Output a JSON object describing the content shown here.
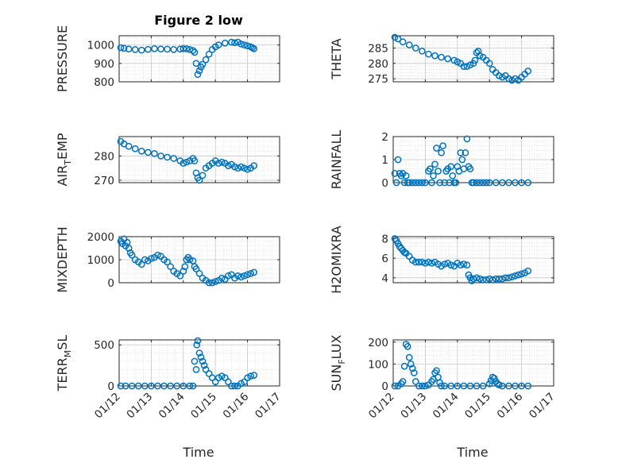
{
  "figure": {
    "title": "Figure 2 low",
    "xlabel": "Time"
  },
  "chart_data": [
    {
      "type": "scatter",
      "title": "Figure 2 low",
      "ylabel": "PRESSURE",
      "ylabel_sub": null,
      "ylim": [
        800,
        1050
      ],
      "yticks": [
        800,
        900,
        1000
      ],
      "xlim": [
        0,
        5
      ],
      "xticks": [
        0,
        1,
        2,
        3,
        4,
        5
      ],
      "xticklabels": [
        "01/12",
        "01/13",
        "01/14",
        "01/15",
        "01/16",
        "01/17"
      ],
      "show_xticklabels": false,
      "grid": true,
      "minor_grid": true,
      "series": [
        {
          "x": [
            0.05,
            0.15,
            0.3,
            0.5,
            0.7,
            0.9,
            1.1,
            1.3,
            1.5,
            1.7,
            1.9,
            2.0,
            2.1,
            2.2,
            2.3,
            2.35,
            2.4,
            2.45,
            2.5,
            2.55,
            2.6,
            2.7,
            2.8,
            2.9,
            3.0,
            3.1,
            3.3,
            3.5,
            3.6,
            3.7,
            3.8,
            3.9,
            4.0,
            4.1,
            4.15,
            4.2
          ],
          "y": [
            985,
            982,
            978,
            975,
            972,
            976,
            980,
            978,
            977,
            975,
            978,
            980,
            979,
            975,
            970,
            960,
            900,
            840,
            860,
            880,
            895,
            920,
            950,
            975,
            990,
            1000,
            1010,
            1015,
            1012,
            1015,
            1005,
            1000,
            995,
            990,
            985,
            980
          ]
        }
      ]
    },
    {
      "type": "scatter",
      "title": "",
      "ylabel": "THETA",
      "ylabel_sub": null,
      "ylim": [
        274,
        289
      ],
      "yticks": [
        275,
        280,
        285
      ],
      "xlim": [
        0,
        5
      ],
      "xticks": [
        0,
        1,
        2,
        3,
        4,
        5
      ],
      "xticklabels": [
        "01/12",
        "01/13",
        "01/14",
        "01/15",
        "01/16",
        "01/17"
      ],
      "show_xticklabels": false,
      "grid": true,
      "minor_grid": true,
      "series": [
        {
          "x": [
            0.05,
            0.15,
            0.3,
            0.5,
            0.7,
            0.9,
            1.1,
            1.3,
            1.5,
            1.7,
            1.9,
            2.0,
            2.1,
            2.2,
            2.3,
            2.4,
            2.5,
            2.55,
            2.6,
            2.65,
            2.7,
            2.8,
            2.9,
            3.0,
            3.1,
            3.2,
            3.3,
            3.4,
            3.5,
            3.6,
            3.7,
            3.8,
            3.9,
            4.0,
            4.1,
            4.2
          ],
          "y": [
            288.5,
            288,
            287,
            286,
            285,
            284,
            283,
            282.5,
            282,
            281.5,
            281,
            280.5,
            280,
            279,
            279,
            279.5,
            280,
            281,
            283.5,
            284,
            282.5,
            282,
            281,
            280,
            278,
            277,
            276,
            275.5,
            276,
            275,
            274.5,
            275,
            274.5,
            275.5,
            276.5,
            277.5
          ]
        }
      ]
    },
    {
      "type": "scatter",
      "title": "",
      "ylabel": "AIR",
      "ylabel_sub": "T",
      "ylabel_post": "EMP",
      "ylim": [
        269,
        288
      ],
      "yticks": [
        270,
        280
      ],
      "xlim": [
        0,
        5
      ],
      "xticks": [
        0,
        1,
        2,
        3,
        4,
        5
      ],
      "xticklabels": [
        "01/12",
        "01/13",
        "01/14",
        "01/15",
        "01/16",
        "01/17"
      ],
      "show_xticklabels": false,
      "grid": true,
      "minor_grid": true,
      "series": [
        {
          "x": [
            0.05,
            0.15,
            0.3,
            0.5,
            0.7,
            0.9,
            1.1,
            1.3,
            1.5,
            1.7,
            1.9,
            2.0,
            2.1,
            2.2,
            2.3,
            2.35,
            2.4,
            2.45,
            2.5,
            2.6,
            2.7,
            2.8,
            2.9,
            3.0,
            3.1,
            3.2,
            3.3,
            3.4,
            3.5,
            3.6,
            3.7,
            3.8,
            3.9,
            4.0,
            4.1,
            4.2
          ],
          "y": [
            286,
            285,
            284,
            283,
            282,
            281.5,
            281,
            280,
            279.5,
            279,
            278,
            277,
            277.5,
            278,
            279,
            278,
            273,
            271,
            270,
            272,
            275,
            276,
            277,
            278,
            277,
            277.5,
            277,
            276,
            276.5,
            275.5,
            275,
            275.5,
            275,
            274.5,
            275,
            276
          ]
        }
      ]
    },
    {
      "type": "scatter",
      "title": "",
      "ylabel": "RAINFALL",
      "ylabel_sub": null,
      "ylim": [
        0,
        2
      ],
      "yticks": [
        0,
        1,
        2
      ],
      "xlim": [
        0,
        5
      ],
      "xticks": [
        0,
        1,
        2,
        3,
        4,
        5
      ],
      "xticklabels": [
        "01/12",
        "01/13",
        "01/14",
        "01/15",
        "01/16",
        "01/17"
      ],
      "show_xticklabels": false,
      "grid": true,
      "minor_grid": true,
      "series": [
        {
          "x": [
            0.05,
            0.1,
            0.15,
            0.2,
            0.25,
            0.3,
            0.35,
            0.4,
            0.45,
            0.5,
            0.6,
            0.7,
            0.8,
            0.9,
            1.0,
            1.1,
            1.15,
            1.2,
            1.25,
            1.3,
            1.35,
            1.4,
            1.45,
            1.5,
            1.55,
            1.6,
            1.65,
            1.7,
            1.75,
            1.8,
            1.85,
            1.9,
            1.95,
            2.0,
            2.05,
            2.1,
            2.15,
            2.2,
            2.25,
            2.3,
            2.35,
            2.4,
            2.45,
            2.5,
            2.6,
            2.7,
            2.8,
            2.9,
            3.0,
            3.2,
            3.4,
            3.6,
            3.8,
            4.0,
            4.2
          ],
          "y": [
            0.4,
            0.0,
            1.0,
            0.4,
            0.3,
            0.4,
            0.0,
            0.3,
            0.0,
            0.0,
            0.0,
            0.0,
            0.0,
            0.0,
            0.0,
            0.5,
            0.6,
            0.0,
            0.3,
            0.8,
            1.5,
            0.5,
            0.0,
            1.3,
            1.6,
            0.0,
            0.5,
            0.6,
            0.0,
            0.7,
            0.3,
            0.0,
            0.0,
            0.7,
            0.5,
            1.3,
            1.0,
            0.6,
            1.3,
            1.9,
            0.7,
            0.6,
            0.0,
            0.0,
            0.0,
            0.0,
            0.0,
            0.0,
            0.0,
            0.0,
            0.0,
            0.0,
            0.0,
            0.0,
            0.0
          ]
        }
      ]
    },
    {
      "type": "scatter",
      "title": "",
      "ylabel": "MIXDEPTH",
      "ylabel_sub": null,
      "ylim": [
        0,
        2000
      ],
      "yticks": [
        0,
        1000,
        2000
      ],
      "xlim": [
        0,
        5
      ],
      "xticks": [
        0,
        1,
        2,
        3,
        4,
        5
      ],
      "xticklabels": [
        "01/12",
        "01/13",
        "01/14",
        "01/15",
        "01/16",
        "01/17"
      ],
      "show_xticklabels": false,
      "grid": true,
      "minor_grid": true,
      "series": [
        {
          "x": [
            0.05,
            0.1,
            0.15,
            0.2,
            0.25,
            0.3,
            0.35,
            0.4,
            0.5,
            0.6,
            0.7,
            0.8,
            0.9,
            1.0,
            1.1,
            1.2,
            1.3,
            1.4,
            1.5,
            1.6,
            1.7,
            1.8,
            1.9,
            2.0,
            2.05,
            2.1,
            2.15,
            2.2,
            2.3,
            2.35,
            2.4,
            2.5,
            2.6,
            2.7,
            2.8,
            2.9,
            3.0,
            3.1,
            3.2,
            3.3,
            3.4,
            3.5,
            3.6,
            3.7,
            3.8,
            3.9,
            4.0,
            4.1,
            4.2
          ],
          "y": [
            1800,
            1700,
            1900,
            1600,
            1750,
            1500,
            1300,
            1200,
            1000,
            900,
            800,
            1000,
            950,
            1050,
            1100,
            1200,
            1150,
            1000,
            900,
            700,
            500,
            400,
            300,
            500,
            700,
            1000,
            1100,
            1000,
            950,
            700,
            600,
            400,
            200,
            100,
            0,
            0,
            50,
            100,
            200,
            150,
            300,
            350,
            200,
            300,
            250,
            300,
            350,
            400,
            450
          ]
        }
      ]
    },
    {
      "type": "scatter",
      "title": "",
      "ylabel": "H2OMIXRA",
      "ylabel_sub": null,
      "ylim": [
        3.5,
        8.2
      ],
      "yticks": [
        4,
        6,
        8
      ],
      "xlim": [
        0,
        5
      ],
      "xticks": [
        0,
        1,
        2,
        3,
        4,
        5
      ],
      "xticklabels": [
        "01/12",
        "01/13",
        "01/14",
        "01/15",
        "01/16",
        "01/17"
      ],
      "show_xticklabels": false,
      "grid": true,
      "minor_grid": true,
      "series": [
        {
          "x": [
            0.05,
            0.1,
            0.15,
            0.2,
            0.25,
            0.3,
            0.35,
            0.4,
            0.5,
            0.6,
            0.7,
            0.8,
            0.9,
            1.0,
            1.1,
            1.2,
            1.3,
            1.4,
            1.5,
            1.6,
            1.7,
            1.8,
            1.9,
            2.0,
            2.1,
            2.2,
            2.3,
            2.35,
            2.4,
            2.45,
            2.5,
            2.6,
            2.7,
            2.8,
            2.9,
            3.0,
            3.1,
            3.2,
            3.3,
            3.4,
            3.5,
            3.6,
            3.7,
            3.8,
            3.9,
            4.0,
            4.1,
            4.2
          ],
          "y": [
            8.0,
            7.8,
            7.5,
            7.2,
            7.0,
            6.8,
            6.6,
            6.5,
            6.2,
            5.8,
            5.6,
            5.6,
            5.6,
            5.5,
            5.6,
            5.5,
            5.6,
            5.4,
            5.2,
            5.4,
            5.5,
            5.3,
            5.2,
            5.5,
            5.3,
            5.4,
            5.3,
            4.3,
            4.0,
            3.7,
            3.9,
            4.0,
            3.9,
            3.8,
            3.8,
            3.9,
            3.8,
            3.9,
            3.9,
            3.9,
            4.0,
            4.0,
            4.1,
            4.2,
            4.3,
            4.4,
            4.5,
            4.7
          ]
        }
      ]
    },
    {
      "type": "scatter",
      "title": "",
      "ylabel": "TERR",
      "ylabel_sub": "M",
      "ylabel_post": "SL",
      "ylim": [
        0,
        560
      ],
      "yticks": [
        0,
        500
      ],
      "xlim": [
        0,
        5
      ],
      "xticks": [
        0,
        1,
        2,
        3,
        4,
        5
      ],
      "xticklabels": [
        "01/12",
        "01/13",
        "01/14",
        "01/15",
        "01/16",
        "01/17"
      ],
      "show_xticklabels": true,
      "grid": true,
      "minor_grid": true,
      "series": [
        {
          "x": [
            0.05,
            0.2,
            0.4,
            0.6,
            0.8,
            1.0,
            1.2,
            1.4,
            1.6,
            1.8,
            2.0,
            2.2,
            2.3,
            2.35,
            2.4,
            2.42,
            2.45,
            2.5,
            2.55,
            2.6,
            2.65,
            2.7,
            2.8,
            2.9,
            3.0,
            3.1,
            3.2,
            3.3,
            3.4,
            3.5,
            3.6,
            3.7,
            3.8,
            3.9,
            4.0,
            4.1,
            4.2
          ],
          "y": [
            0,
            0,
            0,
            0,
            0,
            0,
            0,
            0,
            0,
            0,
            0,
            0,
            0,
            300,
            200,
            500,
            550,
            400,
            350,
            300,
            250,
            200,
            150,
            100,
            50,
            100,
            120,
            100,
            50,
            0,
            0,
            0,
            30,
            50,
            100,
            120,
            130
          ]
        }
      ]
    },
    {
      "type": "scatter",
      "title": "",
      "ylabel": "SUN",
      "ylabel_sub": "F",
      "ylabel_post": "LUX",
      "ylim": [
        0,
        210
      ],
      "yticks": [
        0,
        100,
        200
      ],
      "xlim": [
        0,
        5
      ],
      "xticks": [
        0,
        1,
        2,
        3,
        4,
        5
      ],
      "xticklabels": [
        "01/12",
        "01/13",
        "01/14",
        "01/15",
        "01/16",
        "01/17"
      ],
      "show_xticklabels": true,
      "grid": true,
      "minor_grid": true,
      "series": [
        {
          "x": [
            0.05,
            0.15,
            0.25,
            0.3,
            0.35,
            0.4,
            0.45,
            0.5,
            0.55,
            0.6,
            0.65,
            0.7,
            0.8,
            0.9,
            1.0,
            1.1,
            1.2,
            1.25,
            1.3,
            1.35,
            1.4,
            1.45,
            1.5,
            1.6,
            1.8,
            2.0,
            2.2,
            2.4,
            2.6,
            2.8,
            3.0,
            3.05,
            3.1,
            3.15,
            3.2,
            3.25,
            3.3,
            3.4,
            3.6,
            3.8,
            4.0,
            4.2
          ],
          "y": [
            0,
            0,
            10,
            20,
            90,
            190,
            180,
            130,
            100,
            80,
            60,
            20,
            0,
            0,
            0,
            5,
            20,
            30,
            60,
            70,
            40,
            15,
            0,
            0,
            0,
            0,
            0,
            0,
            0,
            0,
            10,
            25,
            40,
            35,
            20,
            10,
            5,
            0,
            0,
            0,
            0,
            0
          ]
        }
      ]
    }
  ],
  "style": {
    "marker_color": "#0072BD",
    "axis_color": "#262626",
    "grid_color": "#d9d9d9"
  }
}
